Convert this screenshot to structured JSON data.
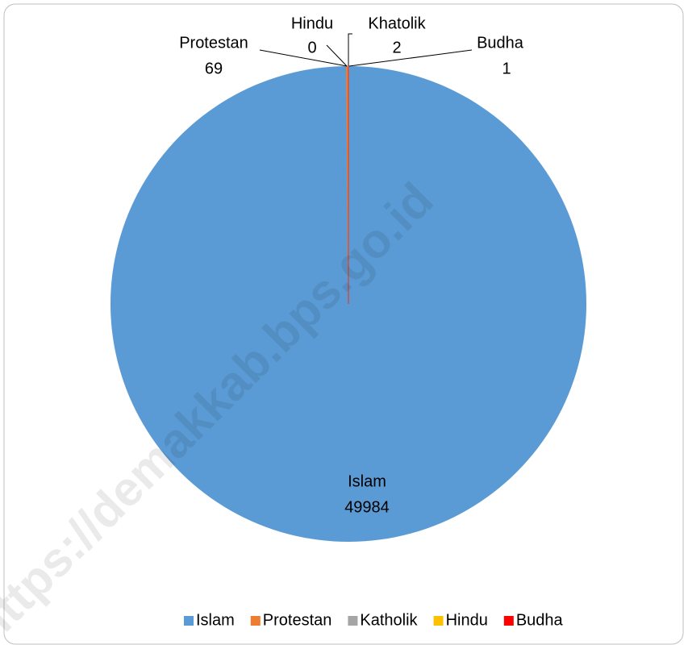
{
  "chart_data": {
    "type": "pie",
    "categories": [
      "Islam",
      "Protestan",
      "Katholik",
      "Hindu",
      "Budha"
    ],
    "label_names": [
      "Islam",
      "Protestan",
      "Khatolik",
      "Hindu",
      "Budha"
    ],
    "values": [
      49984,
      69,
      2,
      0,
      1
    ],
    "colors": [
      "#5b9bd5",
      "#ed7d31",
      "#a5a5a5",
      "#ffc000",
      "#ff0000"
    ],
    "legend": "bottom",
    "watermark": "https://demakkab.bps.go.id"
  }
}
